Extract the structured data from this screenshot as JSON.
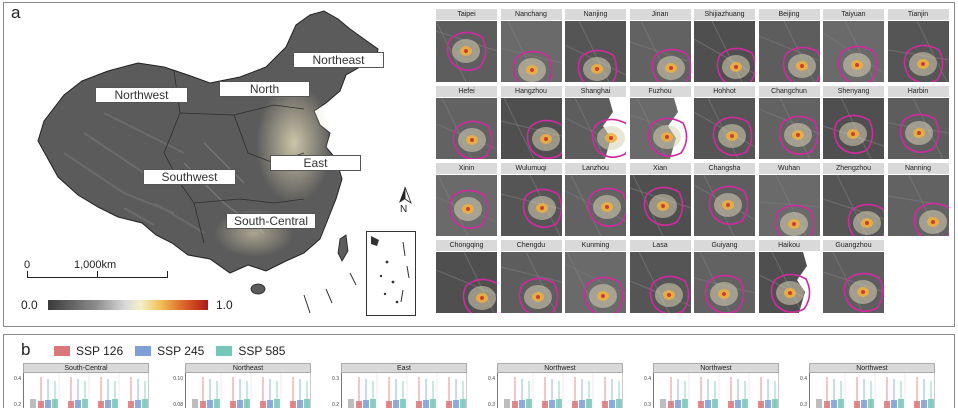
{
  "panel_a": {
    "letter": "a",
    "regions": [
      {
        "key": "northeast",
        "label": "Northeast"
      },
      {
        "key": "north",
        "label": "North"
      },
      {
        "key": "northwest",
        "label": "Northwest"
      },
      {
        "key": "east",
        "label": "East"
      },
      {
        "key": "southwest",
        "label": "Southwest"
      },
      {
        "key": "south_central",
        "label": "South-Central"
      }
    ],
    "scale_bar": {
      "start": "0",
      "end": "1,000km"
    },
    "colorbar": {
      "min": "0.0",
      "max": "1.0"
    },
    "north_arrow": "N",
    "cities": [
      "Taipei",
      "Nanchang",
      "Nanjing",
      "Jinan",
      "Shijiazhuang",
      "Beijing",
      "Taiyuan",
      "Tianjin",
      "Hefei",
      "Hangzhou",
      "Shanghai",
      "Fuzhou",
      "Hohhot",
      "Changchun",
      "Shenyang",
      "Harbin",
      "Xinin",
      "Wulumuqi",
      "Lanzhou",
      "Xian",
      "Changsha",
      "Wuhan",
      "Zhengzhou",
      "Nanning",
      "Chongqing",
      "Chengdu",
      "Kunming",
      "Lasa",
      "Guiyang",
      "Haikou",
      "Guangzhou"
    ]
  },
  "panel_b": {
    "letter": "b",
    "legend": [
      {
        "label": "SSP 126",
        "color": "#d9777a"
      },
      {
        "label": "SSP 245",
        "color": "#7f9fd6"
      },
      {
        "label": "SSP 585",
        "color": "#79c6b8"
      }
    ],
    "charts": [
      {
        "title": "South-Central",
        "ticks": [
          "0.4",
          "0.2"
        ]
      },
      {
        "title": "Northeast",
        "ticks": [
          "0.10",
          "0.08"
        ]
      },
      {
        "title": "East",
        "ticks": [
          "0.3",
          "0.2"
        ]
      },
      {
        "title": "Northwest",
        "ticks": [
          "0.4",
          "0.3"
        ]
      },
      {
        "title": "Northwest",
        "ticks": [
          "0.4",
          "0.3"
        ]
      },
      {
        "title": "Northwest",
        "ticks": [
          "0.4",
          "0.3"
        ]
      }
    ]
  }
}
